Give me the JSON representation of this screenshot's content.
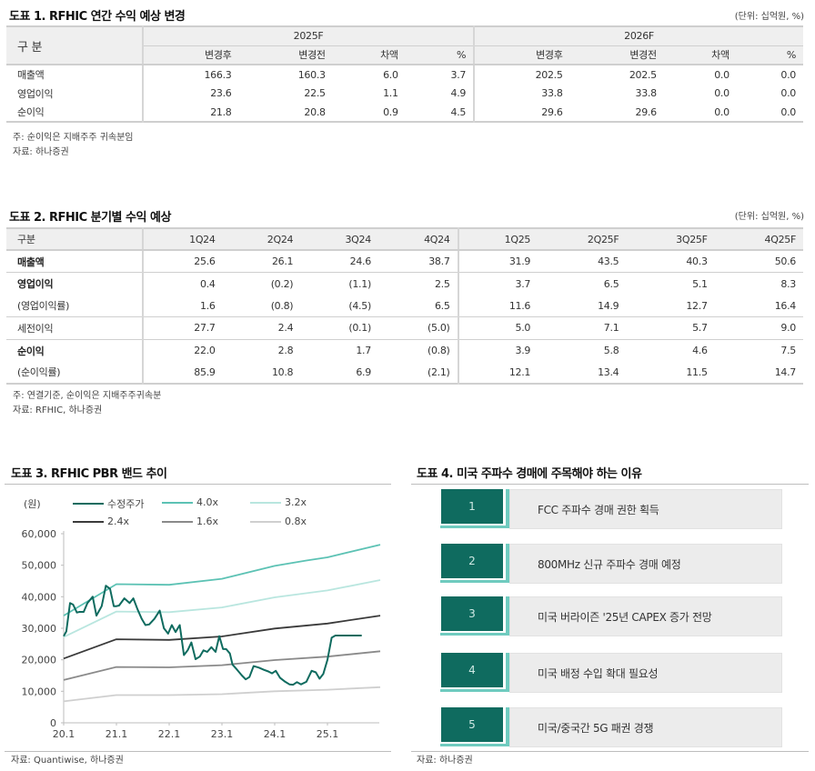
{
  "table1": {
    "title": "도표 1. RFHIC 연간 수익 예상 변경",
    "unit": "(단위: 십억원, %)",
    "row_header": "구 분",
    "groups": [
      "2025F",
      "2026F"
    ],
    "subheaders": [
      "변경후",
      "변경전",
      "차액",
      "%",
      "변경후",
      "변경전",
      "차액",
      "%"
    ],
    "rows": [
      {
        "label": "매출액",
        "values": [
          "166.3",
          "160.3",
          "6.0",
          "3.7",
          "202.5",
          "202.5",
          "0.0",
          "0.0"
        ]
      },
      {
        "label": "영업이익",
        "values": [
          "23.6",
          "22.5",
          "1.1",
          "4.9",
          "33.8",
          "33.8",
          "0.0",
          "0.0"
        ]
      },
      {
        "label": "순이익",
        "values": [
          "21.8",
          "20.8",
          "0.9",
          "4.5",
          "29.6",
          "29.6",
          "0.0",
          "0.0"
        ]
      }
    ],
    "note": "주: 순이익은 지배주주 귀속분임",
    "source": "자료: 하나증권"
  },
  "table2": {
    "title": "도표 2. RFHIC 분기별 수익 예상",
    "unit": "(단위: 십억원, %)",
    "row_header": "구분",
    "columns": [
      "1Q24",
      "2Q24",
      "3Q24",
      "4Q24",
      "1Q25",
      "2Q25F",
      "3Q25F",
      "4Q25F"
    ],
    "rows": [
      {
        "label": "매출액",
        "bold": true,
        "values": [
          "25.6",
          "26.1",
          "24.6",
          "38.7",
          "31.9",
          "43.5",
          "40.3",
          "50.6"
        ]
      },
      {
        "label": "영업이익",
        "bold": true,
        "values": [
          "0.4",
          "(0.2)",
          "(1.1)",
          "2.5",
          "3.7",
          "6.5",
          "5.1",
          "8.3"
        ]
      },
      {
        "label": "(영업이익률)",
        "bold": false,
        "values": [
          "1.6",
          "(0.8)",
          "(4.5)",
          "6.5",
          "11.6",
          "14.9",
          "12.7",
          "16.4"
        ]
      },
      {
        "label": "세전이익",
        "bold": false,
        "values": [
          "27.7",
          "2.4",
          "(0.1)",
          "(5.0)",
          "5.0",
          "7.1",
          "5.7",
          "9.0"
        ]
      },
      {
        "label": "순이익",
        "bold": true,
        "values": [
          "22.0",
          "2.8",
          "1.7",
          "(0.8)",
          "3.9",
          "5.8",
          "4.6",
          "7.5"
        ]
      },
      {
        "label": "(순이익률)",
        "bold": false,
        "values": [
          "85.9",
          "10.8",
          "6.9",
          "(2.1)",
          "12.1",
          "13.4",
          "11.5",
          "14.7"
        ]
      }
    ],
    "note": "주: 연결기준, 순이익은 지배주주귀속분",
    "source": "자료: RFHIC, 하나증권"
  },
  "figure3": {
    "title": "도표 3. RFHIC PBR 밴드 추이",
    "y_unit": "(원)",
    "source": "자료: Quantiwise, 하나증권"
  },
  "chart_data": {
    "type": "line",
    "title": "도표 3. RFHIC PBR 밴드 추이",
    "xlabel": "",
    "ylabel": "(원)",
    "ylim": [
      0,
      60000
    ],
    "yticks": [
      "0",
      "10,000",
      "20,000",
      "30,000",
      "40,000",
      "50,000",
      "60,000"
    ],
    "xticks": [
      "20.1",
      "21.1",
      "22.1",
      "23.1",
      "24.1",
      "25.1"
    ],
    "legend_position": "top",
    "grid": false,
    "series": [
      {
        "name": "수정주가",
        "color": "#0f6b5f",
        "x": [
          0,
          0.05,
          0.12,
          0.18,
          0.25,
          0.3,
          0.38,
          0.45,
          0.55,
          0.62,
          0.72,
          0.8,
          0.88,
          0.95,
          1.0,
          1.05,
          1.15,
          1.25,
          1.32,
          1.4,
          1.48,
          1.55,
          1.62,
          1.72,
          1.82,
          1.9,
          1.98,
          2.05,
          2.12,
          2.2,
          2.28,
          2.35,
          2.42,
          2.5,
          2.58,
          2.65,
          2.72,
          2.8,
          2.88,
          2.95,
          3.02,
          3.08,
          3.15,
          3.2,
          3.28,
          3.38,
          3.45,
          3.52,
          3.6,
          3.7,
          3.8,
          3.88,
          3.95,
          4.02,
          4.1,
          4.2,
          4.28,
          4.35,
          4.42,
          4.5,
          4.6,
          4.7,
          4.78,
          4.85,
          4.92,
          5.0,
          5.08,
          5.15,
          5.22,
          5.3,
          5.38,
          5.45,
          5.52,
          5.58,
          5.65
        ],
        "values": [
          27500,
          29000,
          38000,
          37500,
          35000,
          35200,
          35200,
          38000,
          40000,
          34000,
          37000,
          43500,
          42500,
          37000,
          37000,
          37200,
          39500,
          38000,
          39500,
          36000,
          33000,
          31000,
          31200,
          33000,
          35600,
          30000,
          28300,
          31000,
          28800,
          31000,
          21500,
          23000,
          25500,
          20200,
          21000,
          23000,
          22500,
          24000,
          22500,
          27500,
          23400,
          23400,
          22000,
          18500,
          17000,
          15000,
          13800,
          14500,
          18000,
          17500,
          16800,
          16300,
          15700,
          16500,
          14300,
          13000,
          12200,
          12100,
          12900,
          12200,
          13000,
          16500,
          16000,
          14000,
          15500,
          20000,
          27000,
          27700,
          27700,
          27700,
          27700,
          27700,
          27700,
          27700,
          27700
        ]
      },
      {
        "name": "4.0x",
        "color": "#5cc2b4",
        "x": [
          0,
          1,
          2,
          3,
          4,
          4.6,
          5,
          6
        ],
        "values": [
          34000,
          44000,
          43800,
          45700,
          49800,
          51500,
          52500,
          56500
        ]
      },
      {
        "name": "3.2x",
        "color": "#b9e6df",
        "x": [
          0,
          1,
          2,
          3,
          4,
          5,
          6
        ],
        "values": [
          27200,
          35300,
          35100,
          36600,
          39800,
          42000,
          45300
        ]
      },
      {
        "name": "2.4x",
        "color": "#3a3a3a",
        "x": [
          0,
          1,
          2,
          3,
          4,
          5,
          6
        ],
        "values": [
          20400,
          26500,
          26300,
          27400,
          29900,
          31500,
          34000
        ]
      },
      {
        "name": "1.6x",
        "color": "#8a8a8a",
        "x": [
          0,
          1,
          2,
          3,
          4,
          5,
          6
        ],
        "values": [
          13600,
          17700,
          17600,
          18300,
          19900,
          21000,
          22700
        ]
      },
      {
        "name": "0.8x",
        "color": "#cfcfcf",
        "x": [
          0,
          1,
          2,
          3,
          4,
          5,
          6
        ],
        "values": [
          6800,
          8800,
          8800,
          9100,
          10000,
          10500,
          11300
        ]
      }
    ]
  },
  "figure4": {
    "title": "도표 4. 미국 주파수 경매에 주목해야 하는 이유",
    "items": [
      {
        "number": "1",
        "text": "FCC 주파수 경매 권한 획득"
      },
      {
        "number": "2",
        "text": "800MHz 신규 주파수 경매 예정"
      },
      {
        "number": "3",
        "text": "미국 버라이즌 '25년 CAPEX 증가 전망"
      },
      {
        "number": "4",
        "text": "미국 배정 수입 확대 필요성"
      },
      {
        "number": "5",
        "text": "미국/중국간 5G 패권 경쟁"
      }
    ],
    "source": "자료: 하나증권"
  }
}
